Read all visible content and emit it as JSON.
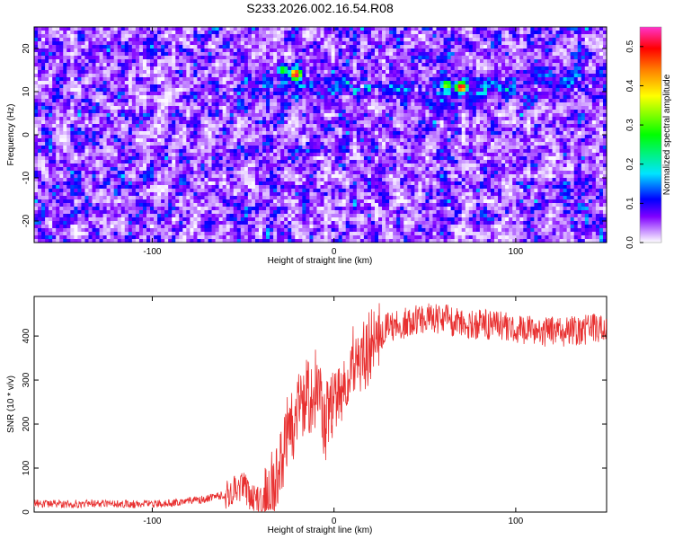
{
  "figure": {
    "title": "S233.2026.002.16.54.R08"
  },
  "chart_data": [
    {
      "type": "heatmap",
      "title": "",
      "xlabel": "Height of straight line (km)",
      "ylabel": "Frequency (Hz)",
      "xlim": [
        -165,
        150
      ],
      "ylim": [
        -25,
        25
      ],
      "xticks": [
        -100,
        0,
        100
      ],
      "yticks": [
        -20,
        -10,
        0,
        10,
        20
      ],
      "colorbar": {
        "label": "Normalized spectral amplitude",
        "range": [
          0,
          0.55
        ],
        "ticks": [
          0.0,
          0.1,
          0.2,
          0.3,
          0.4,
          0.5
        ],
        "colormap": [
          "#ffffff",
          "#cc99ff",
          "#8000ff",
          "#0000ff",
          "#00e5ff",
          "#00ff00",
          "#ffff00",
          "#ff8000",
          "#ff0000",
          "#ff33cc"
        ]
      },
      "band": {
        "freq_hz": 11,
        "description_x_from": -40
      },
      "peaks": [
        {
          "x": -21,
          "y": 14,
          "value": 0.55
        },
        {
          "x": 70,
          "y": 11,
          "value": 0.55
        },
        {
          "x": 62,
          "y": 11.5,
          "value": 0.35
        },
        {
          "x": -28,
          "y": 15,
          "value": 0.3
        }
      ]
    },
    {
      "type": "line",
      "title": "",
      "xlabel": "Height of straight line (km)",
      "ylabel": "SNR (10 * v/v)",
      "xlim": [
        -165,
        150
      ],
      "ylim": [
        0,
        490
      ],
      "xticks": [
        -100,
        0,
        100
      ],
      "yticks": [
        0,
        100,
        200,
        300,
        400
      ],
      "line_color": "#e83030",
      "series": [
        {
          "x": [
            -165,
            -150,
            -130,
            -110,
            -90,
            -80,
            -70,
            -60,
            -55,
            -50,
            -45,
            -40,
            -35,
            -30,
            -25,
            -20,
            -15,
            -10,
            -5,
            0,
            5,
            10,
            15,
            20,
            25,
            30,
            40,
            50,
            60,
            70,
            80,
            90,
            100,
            110,
            120,
            130,
            140,
            150
          ],
          "y": [
            20,
            18,
            20,
            18,
            20,
            25,
            30,
            40,
            55,
            60,
            30,
            20,
            40,
            120,
            180,
            220,
            260,
            280,
            200,
            240,
            300,
            330,
            360,
            380,
            400,
            420,
            430,
            440,
            440,
            430,
            425,
            425,
            415,
            410,
            410,
            410,
            415,
            425
          ]
        }
      ]
    }
  ]
}
